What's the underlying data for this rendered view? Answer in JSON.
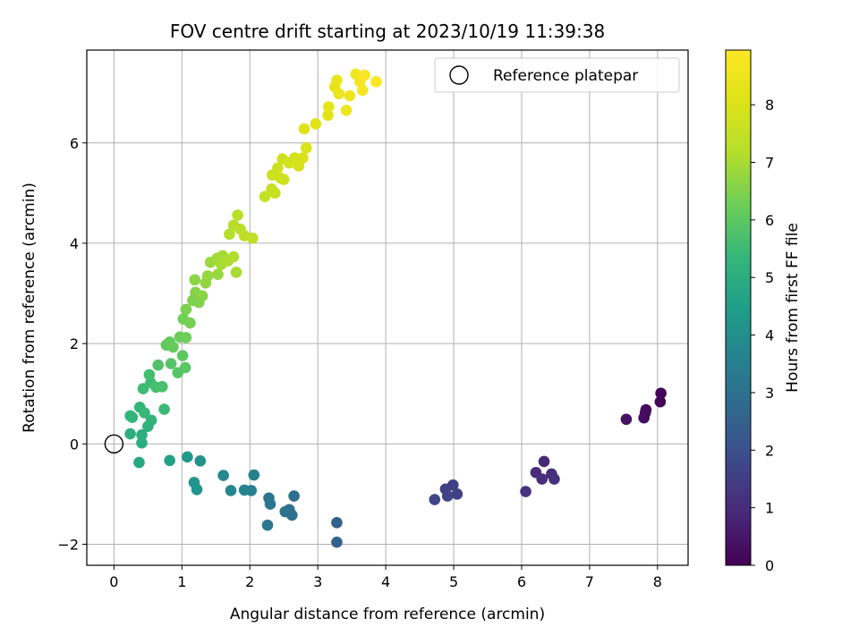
{
  "chart_data": {
    "type": "scatter",
    "title": "FOV centre drift starting at 2023/10/19 11:39:38",
    "xlabel": "Angular distance from reference (arcmin)",
    "ylabel": "Rotation from reference (arcmin)",
    "xlim": [
      -0.4,
      8.45
    ],
    "ylim": [
      -2.42,
      7.85
    ],
    "xticks": [
      0,
      1,
      2,
      3,
      4,
      5,
      6,
      7,
      8
    ],
    "xtick_labels": [
      "0",
      "1",
      "2",
      "3",
      "4",
      "5",
      "6",
      "7",
      "8"
    ],
    "yticks": [
      -2,
      0,
      2,
      4,
      6
    ],
    "ytick_labels": [
      "−2",
      "0",
      "2",
      "4",
      "6"
    ],
    "grid": true,
    "legend": {
      "position": "top-right",
      "entries": [
        {
          "label": "Reference platepar",
          "marker": "open-circle"
        }
      ]
    },
    "reference_point": {
      "x": 0,
      "y": 0,
      "label": "Reference platepar"
    },
    "colorbar": {
      "label": "Hours from first FF file",
      "colormap": "viridis",
      "range": [
        0,
        8.95
      ],
      "ticks": [
        0,
        1,
        2,
        3,
        4,
        5,
        6,
        7,
        8
      ],
      "tick_labels": [
        "0",
        "1",
        "2",
        "3",
        "4",
        "5",
        "6",
        "7",
        "8"
      ]
    },
    "series": [
      {
        "color_by": "Hours from first FF file",
        "points": [
          {
            "x": 8.05,
            "y": 1.01,
            "c": 0.05
          },
          {
            "x": 8.04,
            "y": 0.84,
            "c": 0.1
          },
          {
            "x": 7.83,
            "y": 0.68,
            "c": 0.2
          },
          {
            "x": 7.82,
            "y": 0.62,
            "c": 0.25
          },
          {
            "x": 7.8,
            "y": 0.52,
            "c": 0.3
          },
          {
            "x": 7.54,
            "y": 0.49,
            "c": 0.4
          },
          {
            "x": 6.33,
            "y": -0.35,
            "c": 0.9
          },
          {
            "x": 6.21,
            "y": -0.57,
            "c": 1.0
          },
          {
            "x": 6.44,
            "y": -0.6,
            "c": 1.05
          },
          {
            "x": 6.3,
            "y": -0.7,
            "c": 1.1
          },
          {
            "x": 6.48,
            "y": -0.7,
            "c": 1.15
          },
          {
            "x": 6.06,
            "y": -0.95,
            "c": 1.2
          },
          {
            "x": 4.99,
            "y": -0.82,
            "c": 1.5
          },
          {
            "x": 4.88,
            "y": -0.9,
            "c": 1.55
          },
          {
            "x": 5.05,
            "y": -1.0,
            "c": 1.6
          },
          {
            "x": 4.91,
            "y": -1.04,
            "c": 1.65
          },
          {
            "x": 4.72,
            "y": -1.11,
            "c": 1.7
          },
          {
            "x": 3.28,
            "y": -1.57,
            "c": 2.5
          },
          {
            "x": 3.28,
            "y": -1.96,
            "c": 2.55
          },
          {
            "x": 2.65,
            "y": -1.04,
            "c": 2.9
          },
          {
            "x": 2.58,
            "y": -1.31,
            "c": 2.95
          },
          {
            "x": 2.62,
            "y": -1.42,
            "c": 3.0
          },
          {
            "x": 2.52,
            "y": -1.35,
            "c": 3.05
          },
          {
            "x": 2.28,
            "y": -1.08,
            "c": 3.1
          },
          {
            "x": 2.3,
            "y": -1.2,
            "c": 3.15
          },
          {
            "x": 2.26,
            "y": -1.62,
            "c": 3.2
          },
          {
            "x": 2.06,
            "y": -0.62,
            "c": 3.5
          },
          {
            "x": 2.02,
            "y": -0.93,
            "c": 3.55
          },
          {
            "x": 1.92,
            "y": -0.92,
            "c": 3.6
          },
          {
            "x": 1.72,
            "y": -0.93,
            "c": 3.7
          },
          {
            "x": 1.61,
            "y": -0.63,
            "c": 3.75
          },
          {
            "x": 1.27,
            "y": -0.34,
            "c": 4.1
          },
          {
            "x": 1.18,
            "y": -0.77,
            "c": 4.15
          },
          {
            "x": 1.22,
            "y": -0.91,
            "c": 4.2
          },
          {
            "x": 1.08,
            "y": -0.26,
            "c": 4.3
          },
          {
            "x": 0.82,
            "y": -0.33,
            "c": 4.6
          },
          {
            "x": 0.37,
            "y": -0.37,
            "c": 4.8
          },
          {
            "x": 0.41,
            "y": 0.02,
            "c": 5.0
          },
          {
            "x": 0.24,
            "y": 0.2,
            "c": 5.05
          },
          {
            "x": 0.41,
            "y": 0.18,
            "c": 5.1
          },
          {
            "x": 0.5,
            "y": 0.35,
            "c": 5.15
          },
          {
            "x": 0.55,
            "y": 0.47,
            "c": 5.2
          },
          {
            "x": 0.24,
            "y": 0.56,
            "c": 5.25
          },
          {
            "x": 0.27,
            "y": 0.53,
            "c": 5.3
          },
          {
            "x": 0.38,
            "y": 0.73,
            "c": 5.35
          },
          {
            "x": 0.45,
            "y": 0.62,
            "c": 5.4
          },
          {
            "x": 0.43,
            "y": 1.1,
            "c": 5.5
          },
          {
            "x": 0.54,
            "y": 1.22,
            "c": 5.55
          },
          {
            "x": 0.52,
            "y": 1.38,
            "c": 5.6
          },
          {
            "x": 0.62,
            "y": 1.13,
            "c": 5.65
          },
          {
            "x": 0.71,
            "y": 1.14,
            "c": 5.7
          },
          {
            "x": 0.74,
            "y": 0.69,
            "c": 5.45
          },
          {
            "x": 0.65,
            "y": 1.57,
            "c": 5.8
          },
          {
            "x": 0.84,
            "y": 1.6,
            "c": 5.85
          },
          {
            "x": 0.94,
            "y": 1.42,
            "c": 5.9
          },
          {
            "x": 1.05,
            "y": 1.52,
            "c": 5.95
          },
          {
            "x": 1.01,
            "y": 1.76,
            "c": 6.0
          },
          {
            "x": 0.77,
            "y": 1.97,
            "c": 6.05
          },
          {
            "x": 0.82,
            "y": 2.03,
            "c": 6.1
          },
          {
            "x": 0.87,
            "y": 1.93,
            "c": 6.15
          },
          {
            "x": 0.97,
            "y": 2.13,
            "c": 6.2
          },
          {
            "x": 1.06,
            "y": 2.12,
            "c": 6.25
          },
          {
            "x": 1.02,
            "y": 2.49,
            "c": 6.3
          },
          {
            "x": 1.12,
            "y": 2.41,
            "c": 6.35
          },
          {
            "x": 1.06,
            "y": 2.68,
            "c": 6.4
          },
          {
            "x": 1.16,
            "y": 2.86,
            "c": 6.45
          },
          {
            "x": 1.25,
            "y": 2.82,
            "c": 6.5
          },
          {
            "x": 1.2,
            "y": 3.02,
            "c": 6.55
          },
          {
            "x": 1.3,
            "y": 2.95,
            "c": 6.6
          },
          {
            "x": 1.19,
            "y": 3.27,
            "c": 6.65
          },
          {
            "x": 1.35,
            "y": 3.21,
            "c": 6.7
          },
          {
            "x": 1.38,
            "y": 3.35,
            "c": 6.75
          },
          {
            "x": 1.53,
            "y": 3.38,
            "c": 6.8
          },
          {
            "x": 1.42,
            "y": 3.62,
            "c": 6.85
          },
          {
            "x": 1.52,
            "y": 3.7,
            "c": 6.9
          },
          {
            "x": 1.6,
            "y": 3.75,
            "c": 6.95
          },
          {
            "x": 1.58,
            "y": 3.58,
            "c": 7.0
          },
          {
            "x": 1.68,
            "y": 3.65,
            "c": 7.05
          },
          {
            "x": 1.76,
            "y": 3.73,
            "c": 7.1
          },
          {
            "x": 1.8,
            "y": 3.42,
            "c": 7.0
          },
          {
            "x": 1.7,
            "y": 4.18,
            "c": 7.15
          },
          {
            "x": 1.76,
            "y": 4.36,
            "c": 7.2
          },
          {
            "x": 1.82,
            "y": 4.56,
            "c": 7.25
          },
          {
            "x": 1.86,
            "y": 4.28,
            "c": 7.3
          },
          {
            "x": 1.92,
            "y": 4.15,
            "c": 7.35
          },
          {
            "x": 2.04,
            "y": 4.1,
            "c": 7.4
          },
          {
            "x": 2.22,
            "y": 4.93,
            "c": 7.5
          },
          {
            "x": 2.32,
            "y": 5.08,
            "c": 7.55
          },
          {
            "x": 2.37,
            "y": 5.0,
            "c": 7.6
          },
          {
            "x": 2.33,
            "y": 5.36,
            "c": 7.65
          },
          {
            "x": 2.41,
            "y": 5.5,
            "c": 7.7
          },
          {
            "x": 2.45,
            "y": 5.3,
            "c": 7.7
          },
          {
            "x": 2.5,
            "y": 5.27,
            "c": 7.72
          },
          {
            "x": 2.48,
            "y": 5.68,
            "c": 7.75
          },
          {
            "x": 2.58,
            "y": 5.6,
            "c": 7.8
          },
          {
            "x": 2.66,
            "y": 5.7,
            "c": 7.85
          },
          {
            "x": 2.72,
            "y": 5.54,
            "c": 7.9
          },
          {
            "x": 2.78,
            "y": 5.7,
            "c": 7.95
          },
          {
            "x": 2.83,
            "y": 5.9,
            "c": 8.0
          },
          {
            "x": 2.8,
            "y": 6.28,
            "c": 8.1
          },
          {
            "x": 2.97,
            "y": 6.38,
            "c": 8.15
          },
          {
            "x": 3.15,
            "y": 6.55,
            "c": 8.2
          },
          {
            "x": 3.16,
            "y": 6.72,
            "c": 8.25
          },
          {
            "x": 3.25,
            "y": 7.12,
            "c": 8.35
          },
          {
            "x": 3.28,
            "y": 7.25,
            "c": 8.4
          },
          {
            "x": 3.31,
            "y": 6.98,
            "c": 8.45
          },
          {
            "x": 3.42,
            "y": 6.65,
            "c": 8.5
          },
          {
            "x": 3.47,
            "y": 6.94,
            "c": 8.55
          },
          {
            "x": 3.56,
            "y": 7.37,
            "c": 8.65
          },
          {
            "x": 3.62,
            "y": 7.22,
            "c": 8.7
          },
          {
            "x": 3.66,
            "y": 7.05,
            "c": 8.75
          },
          {
            "x": 3.69,
            "y": 7.35,
            "c": 8.8
          },
          {
            "x": 3.86,
            "y": 7.22,
            "c": 8.9
          }
        ]
      }
    ]
  }
}
